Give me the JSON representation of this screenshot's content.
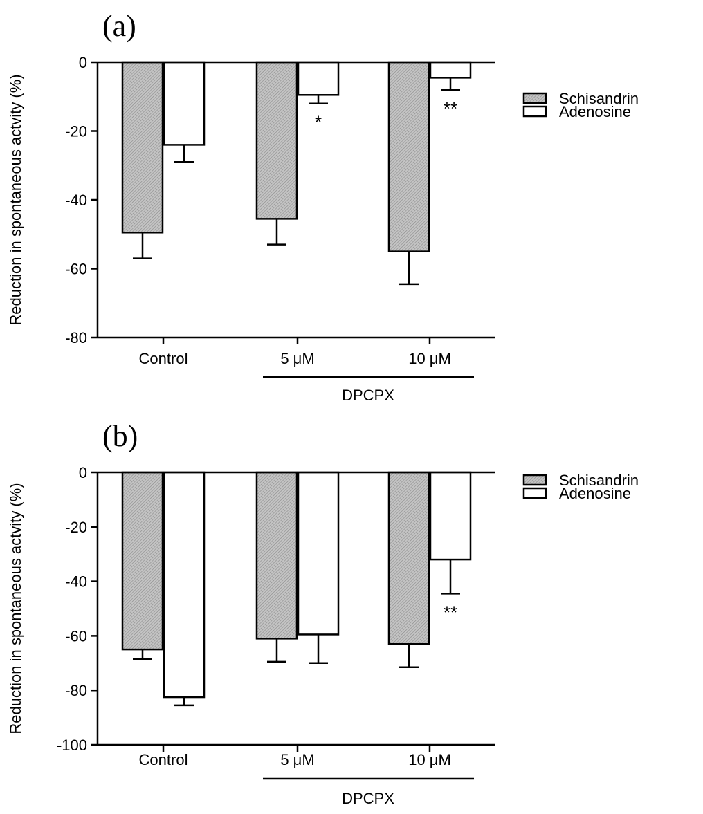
{
  "colors": {
    "axis": "#000000",
    "schisandrin_fill": "#bdbdbd",
    "adenosine_fill": "#ffffff"
  },
  "chart_data": [
    {
      "panel": "(a)",
      "type": "bar",
      "categories": [
        "Control",
        "5 μM",
        "10 μM"
      ],
      "group_label": "DPCPX",
      "ylabel": "Reduction in spontaneous actvity (%)",
      "ylim": [
        -80,
        0
      ],
      "yticks": [
        0,
        -20,
        -40,
        -60,
        -80
      ],
      "legend_position": "right",
      "series": [
        {
          "name": "Schisandrin",
          "values": [
            -49.5,
            -45.5,
            -55.0
          ],
          "errors": [
            7.5,
            7.5,
            9.5
          ],
          "pattern": "hatched-gray"
        },
        {
          "name": "Adenosine",
          "values": [
            -24.0,
            -9.5,
            -4.5
          ],
          "errors": [
            5.0,
            2.5,
            3.5
          ],
          "pattern": "white"
        }
      ],
      "annotations": [
        {
          "series": 1,
          "category": 1,
          "text": "*"
        },
        {
          "series": 1,
          "category": 2,
          "text": "**"
        }
      ]
    },
    {
      "panel": "(b)",
      "type": "bar",
      "categories": [
        "Control",
        "5 μM",
        "10 μM"
      ],
      "group_label": "DPCPX",
      "ylabel": "Reduction in spontaneous actvity (%)",
      "ylim": [
        -100,
        0
      ],
      "yticks": [
        0,
        -20,
        -40,
        -60,
        -80,
        -100
      ],
      "legend_position": "right",
      "series": [
        {
          "name": "Schisandrin",
          "values": [
            -65.0,
            -61.0,
            -63.0
          ],
          "errors": [
            3.5,
            8.5,
            8.5
          ],
          "pattern": "hatched-gray"
        },
        {
          "name": "Adenosine",
          "values": [
            -82.5,
            -59.5,
            -32.0
          ],
          "errors": [
            3.0,
            10.5,
            12.5
          ],
          "pattern": "white"
        }
      ],
      "annotations": [
        {
          "series": 1,
          "category": 2,
          "text": "**"
        }
      ]
    }
  ]
}
